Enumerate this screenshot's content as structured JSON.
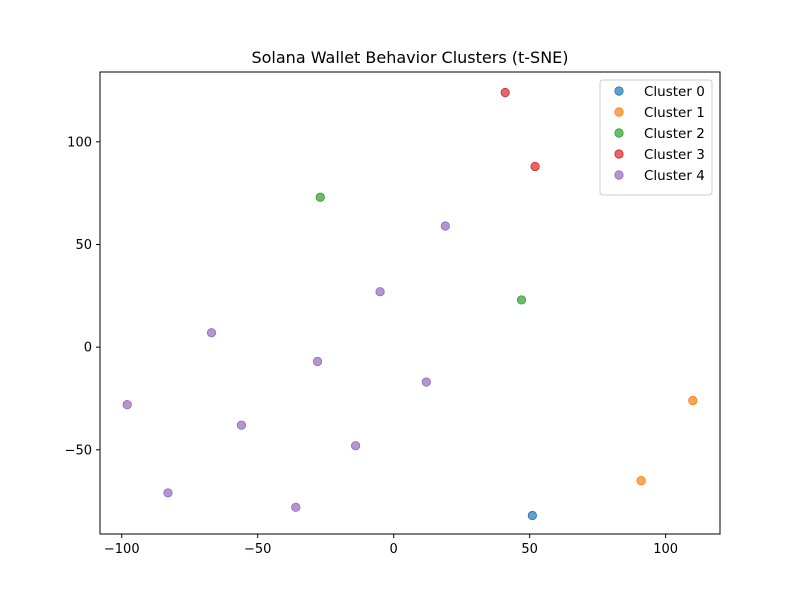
{
  "chart_data": {
    "type": "scatter",
    "title": "Solana Wallet Behavior Clusters (t-SNE)",
    "xlabel": "",
    "ylabel": "",
    "xlim": [
      -108,
      120
    ],
    "ylim": [
      -91,
      134
    ],
    "x_ticks": [
      -100,
      -50,
      0,
      50,
      100
    ],
    "y_ticks": [
      -50,
      0,
      50,
      100
    ],
    "x_tick_labels": [
      "−100",
      "−50",
      "0",
      "50",
      "100"
    ],
    "y_tick_labels": [
      "−50",
      "0",
      "50",
      "100"
    ],
    "grid": false,
    "legend_position": "top-right",
    "series": [
      {
        "name": "Cluster 0",
        "color": "#1f77b4",
        "points": [
          [
            51,
            -82
          ]
        ]
      },
      {
        "name": "Cluster 1",
        "color": "#ff7f0e",
        "points": [
          [
            110,
            -26
          ],
          [
            91,
            -65
          ]
        ]
      },
      {
        "name": "Cluster 2",
        "color": "#2ca02c",
        "points": [
          [
            -27,
            73
          ],
          [
            47,
            23
          ]
        ]
      },
      {
        "name": "Cluster 3",
        "color": "#d62728",
        "points": [
          [
            41,
            124
          ],
          [
            52,
            88
          ]
        ]
      },
      {
        "name": "Cluster 4",
        "color": "#9467bd",
        "points": [
          [
            19,
            59
          ],
          [
            -5,
            27
          ],
          [
            -67,
            7
          ],
          [
            -28,
            -7
          ],
          [
            12,
            -17
          ],
          [
            -98,
            -28
          ],
          [
            -56,
            -38
          ],
          [
            -14,
            -48
          ],
          [
            -83,
            -71
          ],
          [
            -36,
            -78
          ]
        ]
      }
    ]
  }
}
